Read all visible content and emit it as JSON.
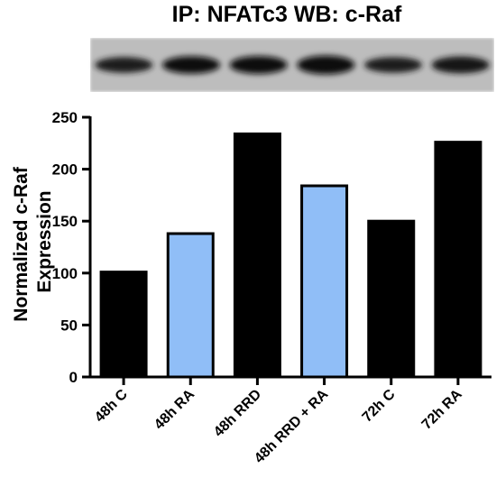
{
  "title": "IP: NFATc3 WB: c-Raf",
  "ylabel_lines": [
    "Normalized c-Raf",
    "Expression"
  ],
  "chart_data": {
    "type": "bar",
    "title": "IP: NFATc3 WB: c-Raf",
    "categories": [
      "48h C",
      "48h RA",
      "48h RRD",
      "48h RRD + RA",
      "72h C",
      "72h RA"
    ],
    "values": [
      101,
      138,
      234,
      184,
      150,
      226
    ],
    "bar_colors": [
      "#000000",
      "#90bef7",
      "#000000",
      "#90bef7",
      "#000000",
      "#000000"
    ],
    "ylabel": "Normalized c-Raf Expression",
    "xlabel": "",
    "ylim": [
      0,
      250
    ],
    "yticks": [
      0,
      50,
      100,
      150,
      200,
      250
    ],
    "grid": false,
    "legend": "none"
  },
  "blot": {
    "band_count": 6,
    "band_intensity": [
      0.62,
      0.78,
      0.82,
      0.9,
      0.6,
      0.72
    ]
  }
}
